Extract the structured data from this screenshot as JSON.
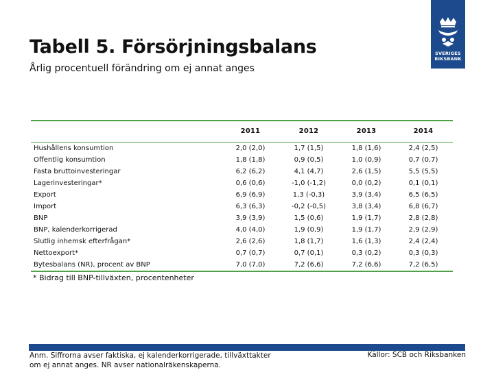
{
  "header": {
    "title": "Tabell 5. Försörjningsbalans",
    "subtitle": "Årlig procentuell förändring om ej annat anges"
  },
  "logo": {
    "line1": "SVERIGES",
    "line2": "RIKSBANK",
    "brand_color": "#1c4a8c"
  },
  "table": {
    "accent_color": "#4fa046",
    "years": [
      "2011",
      "2012",
      "2013",
      "2014"
    ],
    "rows": [
      {
        "label": "Hushållens konsumtion",
        "values": [
          "2,0 (2,0)",
          "1,7 (1,5)",
          "1,8 (1,6)",
          "2,4 (2,5)"
        ]
      },
      {
        "label": "Offentlig konsumtion",
        "values": [
          "1,8 (1,8)",
          "0,9 (0,5)",
          "1,0 (0,9)",
          "0,7 (0,7)"
        ]
      },
      {
        "label": "Fasta bruttoinvesteringar",
        "values": [
          "6,2 (6,2)",
          "4,1 (4,7)",
          "2,6 (1,5)",
          "5,5 (5,5)"
        ]
      },
      {
        "label": "Lagerinvesteringar*",
        "values": [
          "0,6 (0,6)",
          "-1,0 (-1,2)",
          "0,0 (0,2)",
          "0,1 (0,1)"
        ]
      },
      {
        "label": "Export",
        "values": [
          "6,9 (6,9)",
          "1,3 (-0,3)",
          "3,9 (3,4)",
          "6,5 (6,5)"
        ]
      },
      {
        "label": "Import",
        "values": [
          "6,3 (6,3)",
          "-0,2 (-0,5)",
          "3,8 (3,4)",
          "6,8 (6,7)"
        ]
      },
      {
        "label": "BNP",
        "values": [
          "3,9 (3,9)",
          "1,5 (0,6)",
          "1,9 (1,7)",
          "2,8 (2,8)"
        ]
      },
      {
        "label": "BNP, kalenderkorrigerad",
        "values": [
          "4,0 (4,0)",
          "1,9 (0,9)",
          "1,9 (1,7)",
          "2,9 (2,9)"
        ]
      },
      {
        "label": "Slutlig inhemsk efterfrågan*",
        "values": [
          "2,6 (2,6)",
          "1,8 (1,7)",
          "1,6 (1,3)",
          "2,4 (2,4)"
        ]
      },
      {
        "label": "Nettoexport*",
        "values": [
          "0,7 (0,7)",
          "0,7 (0,1)",
          "0,3 (0,2)",
          "0,3 (0,3)"
        ]
      },
      {
        "label": "Bytesbalans (NR), procent av BNP",
        "values": [
          "7,0 (7,0)",
          "7,2 (6,6)",
          "7,2 (6,6)",
          "7,2 (6,5)"
        ]
      }
    ]
  },
  "footnote": "* Bidrag till BNP-tillväxten, procentenheter",
  "footer": {
    "note": "Anm. Siffrorna avser faktiska, ej kalenderkorrigerade, tillväxttakter om ej annat anges. NR avser nationalräkenskaperna.",
    "sources": "Källor: SCB och Riksbanken"
  }
}
